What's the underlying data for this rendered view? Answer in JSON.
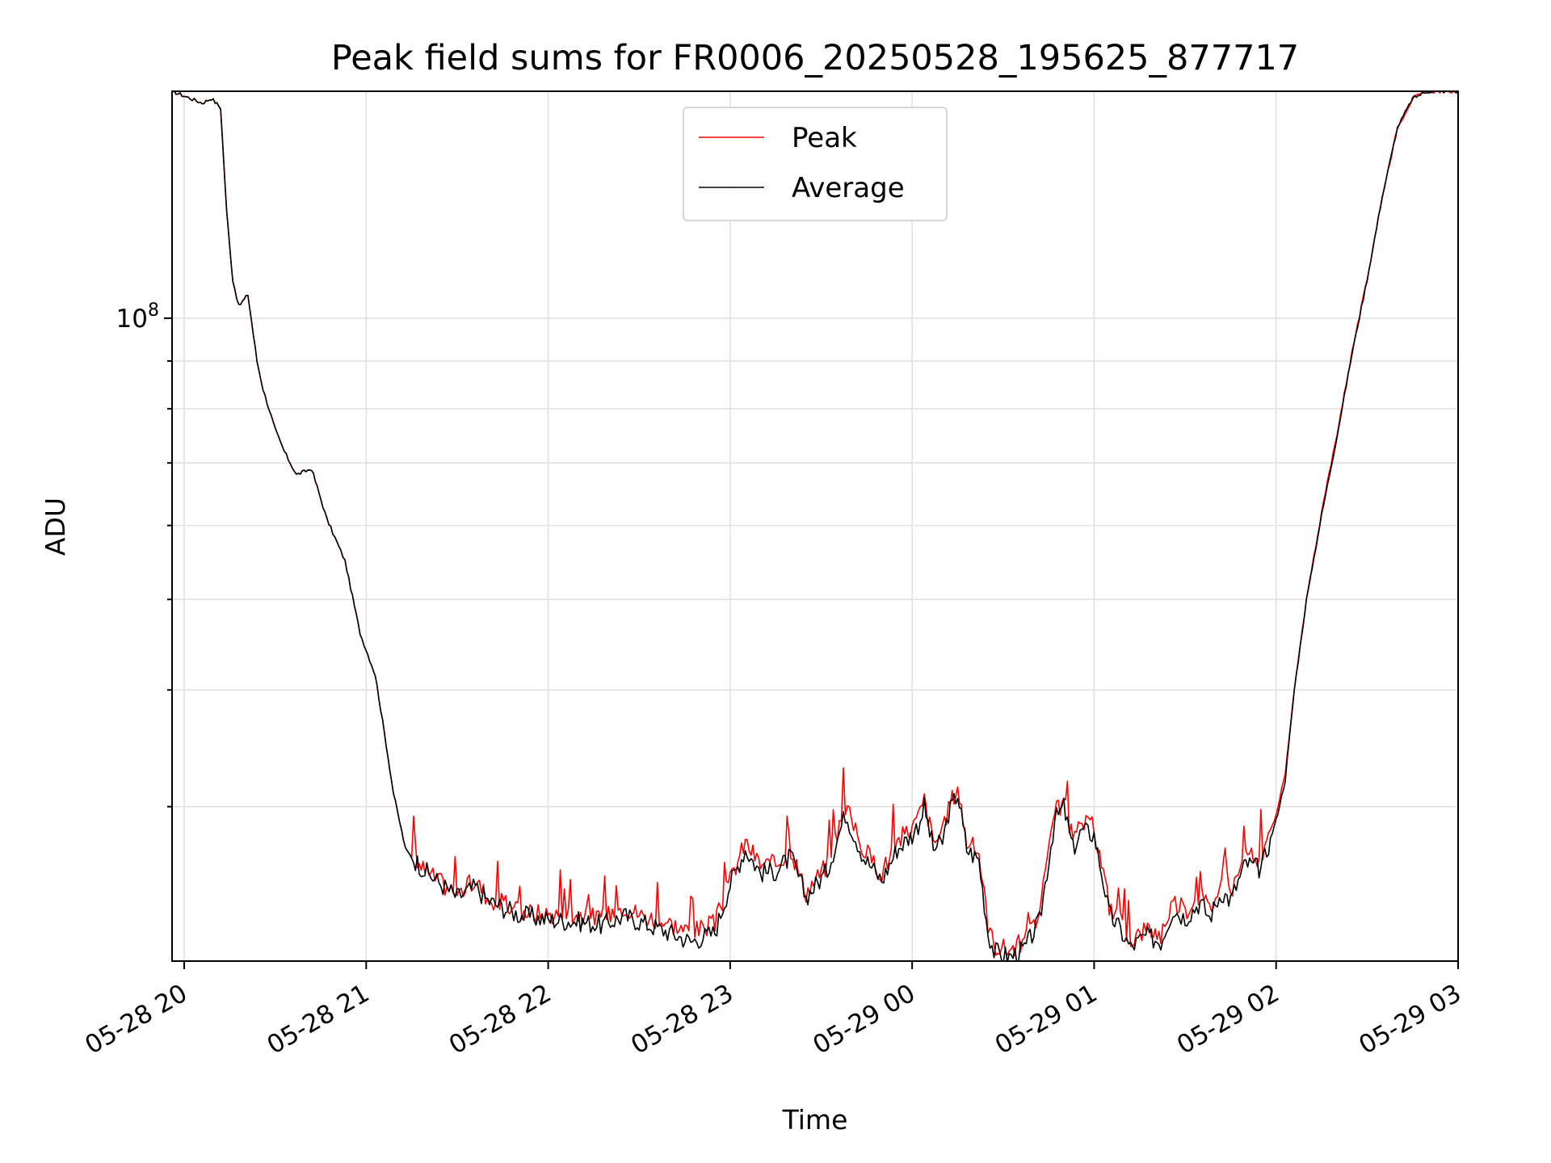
{
  "chart_data": {
    "type": "line",
    "title": "Peak field sums for FR0006_20250528_195625_877717",
    "xlabel": "Time",
    "ylabel": "ADU",
    "y_scale": "log",
    "ylim": [
      20500000,
      175000000
    ],
    "xlim": [
      "2025-05-28 19:56",
      "2025-05-29 03:00"
    ],
    "grid": true,
    "legend_position": "top-center",
    "x_ticks": [
      "05-28 20",
      "05-28 21",
      "05-28 22",
      "05-28 23",
      "05-29 00",
      "05-29 01",
      "05-29 02",
      "05-29 03"
    ],
    "x_tick_times": [
      "2025-05-28 20:00",
      "2025-05-28 21:00",
      "2025-05-28 22:00",
      "2025-05-28 23:00",
      "2025-05-29 00:00",
      "2025-05-29 01:00",
      "2025-05-29 02:00",
      "2025-05-29 03:00"
    ],
    "y_ticks": [
      {
        "label": "10",
        "sup": "8",
        "value": 100000000
      }
    ],
    "y_minor_ticks": [
      30000000,
      40000000,
      50000000,
      60000000,
      70000000,
      80000000,
      90000000,
      200000000
    ],
    "series": [
      {
        "name": "Peak",
        "color": "#ff0000",
        "times": [
          "2025-05-28 19:56",
          "2025-05-28 20:06",
          "2025-05-28 20:09",
          "2025-05-28 20:12",
          "2025-05-28 20:14",
          "2025-05-28 20:16",
          "2025-05-28 20:18",
          "2025-05-28 20:21",
          "2025-05-28 20:24",
          "2025-05-28 20:26",
          "2025-05-28 20:30",
          "2025-05-28 20:33",
          "2025-05-28 20:37",
          "2025-05-28 20:42",
          "2025-05-28 20:47",
          "2025-05-28 20:53",
          "2025-05-28 20:58",
          "2025-05-28 21:03",
          "2025-05-28 21:06",
          "2025-05-28 21:09",
          "2025-05-28 21:13",
          "2025-05-28 21:15",
          "2025-05-28 21:20",
          "2025-05-28 21:30",
          "2025-05-28 21:36",
          "2025-05-28 21:40",
          "2025-05-28 21:50",
          "2025-05-28 22:00",
          "2025-05-28 22:10",
          "2025-05-28 22:18",
          "2025-05-28 22:25",
          "2025-05-28 22:30",
          "2025-05-28 22:40",
          "2025-05-28 22:47",
          "2025-05-28 22:55",
          "2025-05-28 23:00",
          "2025-05-28 23:05",
          "2025-05-28 23:10",
          "2025-05-28 23:15",
          "2025-05-28 23:20",
          "2025-05-28 23:25",
          "2025-05-28 23:32",
          "2025-05-28 23:38",
          "2025-05-28 23:44",
          "2025-05-28 23:50",
          "2025-05-28 23:55",
          "2025-05-29 00:00",
          "2025-05-29 00:02",
          "2025-05-29 00:04",
          "2025-05-29 00:07",
          "2025-05-29 00:10",
          "2025-05-29 00:12",
          "2025-05-29 00:15",
          "2025-05-29 00:18",
          "2025-05-29 00:22",
          "2025-05-29 00:25",
          "2025-05-29 00:27",
          "2025-05-29 00:32",
          "2025-05-29 00:37",
          "2025-05-29 00:42",
          "2025-05-29 00:47",
          "2025-05-29 00:50",
          "2025-05-29 00:53",
          "2025-05-29 00:56",
          "2025-05-29 01:00",
          "2025-05-29 01:03",
          "2025-05-29 01:05",
          "2025-05-29 01:08",
          "2025-05-29 01:12",
          "2025-05-29 01:17",
          "2025-05-29 01:22",
          "2025-05-29 01:26",
          "2025-05-29 01:30",
          "2025-05-29 01:35",
          "2025-05-29 01:38",
          "2025-05-29 01:42",
          "2025-05-29 01:45",
          "2025-05-29 01:50",
          "2025-05-29 01:55",
          "2025-05-29 02:00",
          "2025-05-29 02:03",
          "2025-05-29 02:06",
          "2025-05-29 02:10",
          "2025-05-29 02:15",
          "2025-05-29 02:20",
          "2025-05-29 02:25",
          "2025-05-29 02:30",
          "2025-05-29 02:35",
          "2025-05-29 02:40",
          "2025-05-29 02:45",
          "2025-05-29 02:50",
          "2025-05-29 03:00"
        ],
        "values": [
          175000000,
          170000000,
          172000000,
          168000000,
          130000000,
          110000000,
          103000000,
          106000000,
          90000000,
          84000000,
          76000000,
          72000000,
          68000000,
          69000000,
          61000000,
          55000000,
          46000000,
          41500000,
          36000000,
          31000000,
          27000000,
          26500000,
          25500000,
          24200000,
          25000000,
          24000000,
          23200000,
          23000000,
          23000000,
          22800000,
          23500000,
          23000000,
          22500000,
          22000000,
          22500000,
          25000000,
          27500000,
          26000000,
          26000000,
          27000000,
          24300000,
          26000000,
          30000000,
          27000000,
          25500000,
          27500000,
          28500000,
          29200000,
          30500000,
          27500000,
          28000000,
          30000000,
          31500000,
          27500000,
          26800000,
          22500000,
          21300000,
          21100000,
          21500000,
          23000000,
          29500000,
          30500000,
          27500000,
          28800000,
          28500000,
          25500000,
          23500000,
          22800000,
          21600000,
          22200000,
          21900000,
          23800000,
          23200000,
          24200000,
          23300000,
          24800000,
          24300000,
          26600000,
          26200000,
          29500000,
          32500000,
          40000000,
          50000000,
          62000000,
          75000000,
          92000000,
          110000000,
          135000000,
          160000000,
          172000000,
          175000000,
          175000000
        ]
      },
      {
        "name": "Average",
        "color": "#000000",
        "times": [
          "2025-05-28 19:56",
          "2025-05-28 20:06",
          "2025-05-28 20:09",
          "2025-05-28 20:12",
          "2025-05-28 20:14",
          "2025-05-28 20:16",
          "2025-05-28 20:18",
          "2025-05-28 20:21",
          "2025-05-28 20:24",
          "2025-05-28 20:26",
          "2025-05-28 20:30",
          "2025-05-28 20:33",
          "2025-05-28 20:37",
          "2025-05-28 20:42",
          "2025-05-28 20:47",
          "2025-05-28 20:53",
          "2025-05-28 20:58",
          "2025-05-28 21:03",
          "2025-05-28 21:06",
          "2025-05-28 21:09",
          "2025-05-28 21:13",
          "2025-05-28 21:15",
          "2025-05-28 21:20",
          "2025-05-28 21:30",
          "2025-05-28 21:36",
          "2025-05-28 21:40",
          "2025-05-28 21:50",
          "2025-05-28 22:00",
          "2025-05-28 22:10",
          "2025-05-28 22:18",
          "2025-05-28 22:25",
          "2025-05-28 22:30",
          "2025-05-28 22:40",
          "2025-05-28 22:47",
          "2025-05-28 22:55",
          "2025-05-28 23:00",
          "2025-05-28 23:05",
          "2025-05-28 23:10",
          "2025-05-28 23:15",
          "2025-05-28 23:20",
          "2025-05-28 23:25",
          "2025-05-28 23:32",
          "2025-05-28 23:38",
          "2025-05-28 23:44",
          "2025-05-28 23:50",
          "2025-05-28 23:55",
          "2025-05-29 00:00",
          "2025-05-29 00:02",
          "2025-05-29 00:04",
          "2025-05-29 00:07",
          "2025-05-29 00:10",
          "2025-05-29 00:12",
          "2025-05-29 00:15",
          "2025-05-29 00:18",
          "2025-05-29 00:22",
          "2025-05-29 00:25",
          "2025-05-29 00:27",
          "2025-05-29 00:32",
          "2025-05-29 00:37",
          "2025-05-29 00:42",
          "2025-05-29 00:47",
          "2025-05-29 00:50",
          "2025-05-29 00:53",
          "2025-05-29 00:56",
          "2025-05-29 01:00",
          "2025-05-29 01:03",
          "2025-05-29 01:05",
          "2025-05-29 01:08",
          "2025-05-29 01:12",
          "2025-05-29 01:17",
          "2025-05-29 01:22",
          "2025-05-29 01:26",
          "2025-05-29 01:30",
          "2025-05-29 01:35",
          "2025-05-29 01:38",
          "2025-05-29 01:42",
          "2025-05-29 01:45",
          "2025-05-29 01:50",
          "2025-05-29 01:55",
          "2025-05-29 02:00",
          "2025-05-29 02:03",
          "2025-05-29 02:06",
          "2025-05-29 02:10",
          "2025-05-29 02:15",
          "2025-05-29 02:20",
          "2025-05-29 02:25",
          "2025-05-29 02:30",
          "2025-05-29 02:35",
          "2025-05-29 02:40",
          "2025-05-29 02:45",
          "2025-05-29 02:50",
          "2025-05-29 03:00"
        ],
        "values": [
          175000000,
          170000000,
          172000000,
          168000000,
          130000000,
          110000000,
          103000000,
          106000000,
          90000000,
          84000000,
          76000000,
          72000000,
          68000000,
          69000000,
          61000000,
          55000000,
          46000000,
          41500000,
          36000000,
          31000000,
          27000000,
          26500000,
          25500000,
          24000000,
          24600000,
          23800000,
          23000000,
          22700000,
          22600000,
          22400000,
          22900000,
          22600000,
          22000000,
          21500000,
          22000000,
          24800000,
          27000000,
          25500000,
          25600000,
          26500000,
          24000000,
          25600000,
          29500000,
          26500000,
          25000000,
          27000000,
          28000000,
          28700000,
          30000000,
          27000000,
          27500000,
          29500000,
          31000000,
          27000000,
          26300000,
          22000000,
          21000000,
          20700000,
          21100000,
          22600000,
          29000000,
          30000000,
          27000000,
          28300000,
          28000000,
          25000000,
          23000000,
          22300000,
          21200000,
          21800000,
          21500000,
          23300000,
          22800000,
          23700000,
          22800000,
          24300000,
          23800000,
          26100000,
          25700000,
          29000000,
          32000000,
          40000000,
          50000000,
          61500000,
          74500000,
          91500000,
          110000000,
          135000000,
          160000000,
          172000000,
          175000000,
          175000000
        ]
      }
    ]
  }
}
